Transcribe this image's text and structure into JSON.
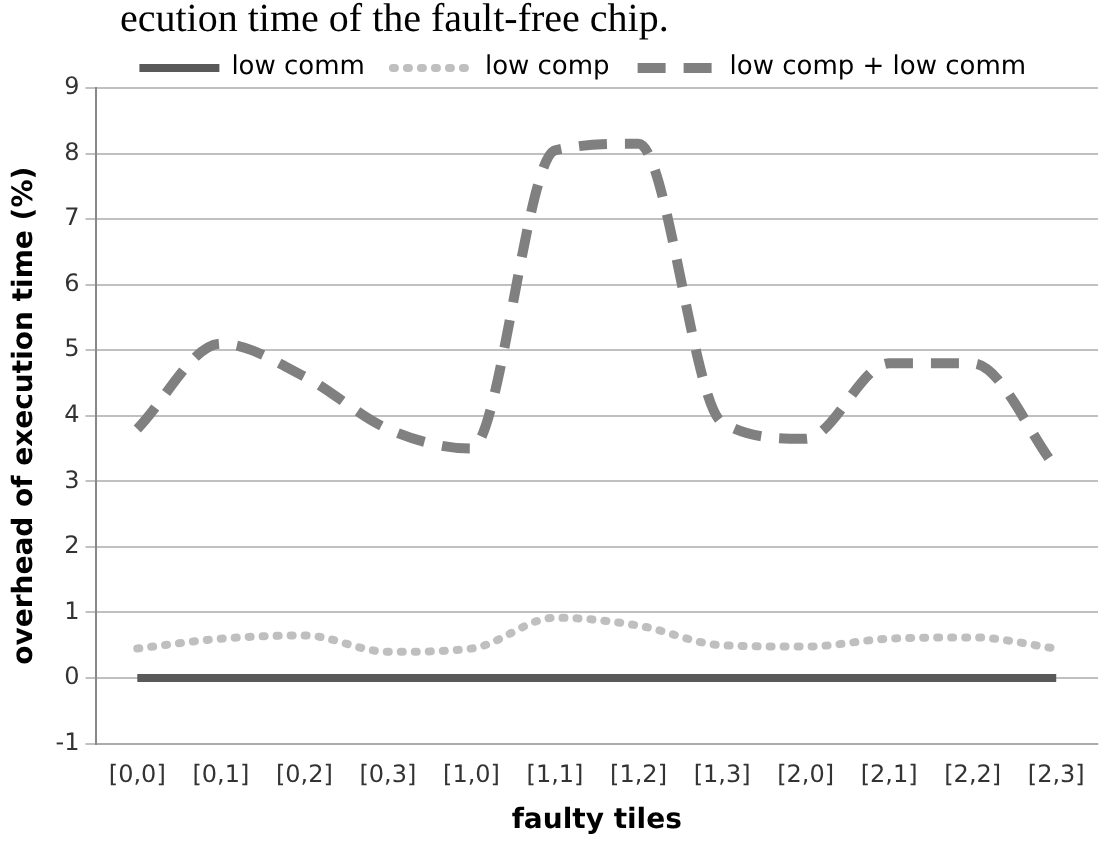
{
  "chart_data": {
    "type": "line",
    "annotations": [
      "ecution time of the fault-free chip."
    ],
    "xlabel": "faulty tiles",
    "ylabel": "overhead of execution time (%)",
    "categories": [
      "[0,0]",
      "[0,1]",
      "[0,2]",
      "[0,3]",
      "[1,0]",
      "[1,1]",
      "[1,2]",
      "[1,3]",
      "[2,0]",
      "[2,1]",
      "[2,2]",
      "[2,3]"
    ],
    "series": [
      {
        "name": "low comm",
        "color": "#595959",
        "line_style": "solid",
        "values": [
          0,
          0,
          0,
          0,
          0,
          0,
          0,
          0,
          0,
          0,
          0,
          0
        ]
      },
      {
        "name": "low comp",
        "color": "#bfbfbf",
        "line_style": "dotted",
        "values": [
          0.45,
          0.6,
          0.65,
          0.4,
          0.45,
          0.92,
          0.8,
          0.5,
          0.48,
          0.6,
          0.62,
          0.45
        ]
      },
      {
        "name": "low comp + low comm",
        "color": "#808080",
        "line_style": "dashed",
        "values": [
          3.8,
          5.1,
          4.6,
          3.8,
          3.5,
          8.05,
          8.15,
          3.9,
          3.65,
          4.8,
          4.8,
          3.2
        ]
      }
    ],
    "ylim": [
      -1,
      9
    ],
    "yticks": [
      -1,
      0,
      1,
      2,
      3,
      4,
      5,
      6,
      7,
      8,
      9
    ],
    "grid": "y",
    "legend": "top",
    "marker": "none"
  }
}
